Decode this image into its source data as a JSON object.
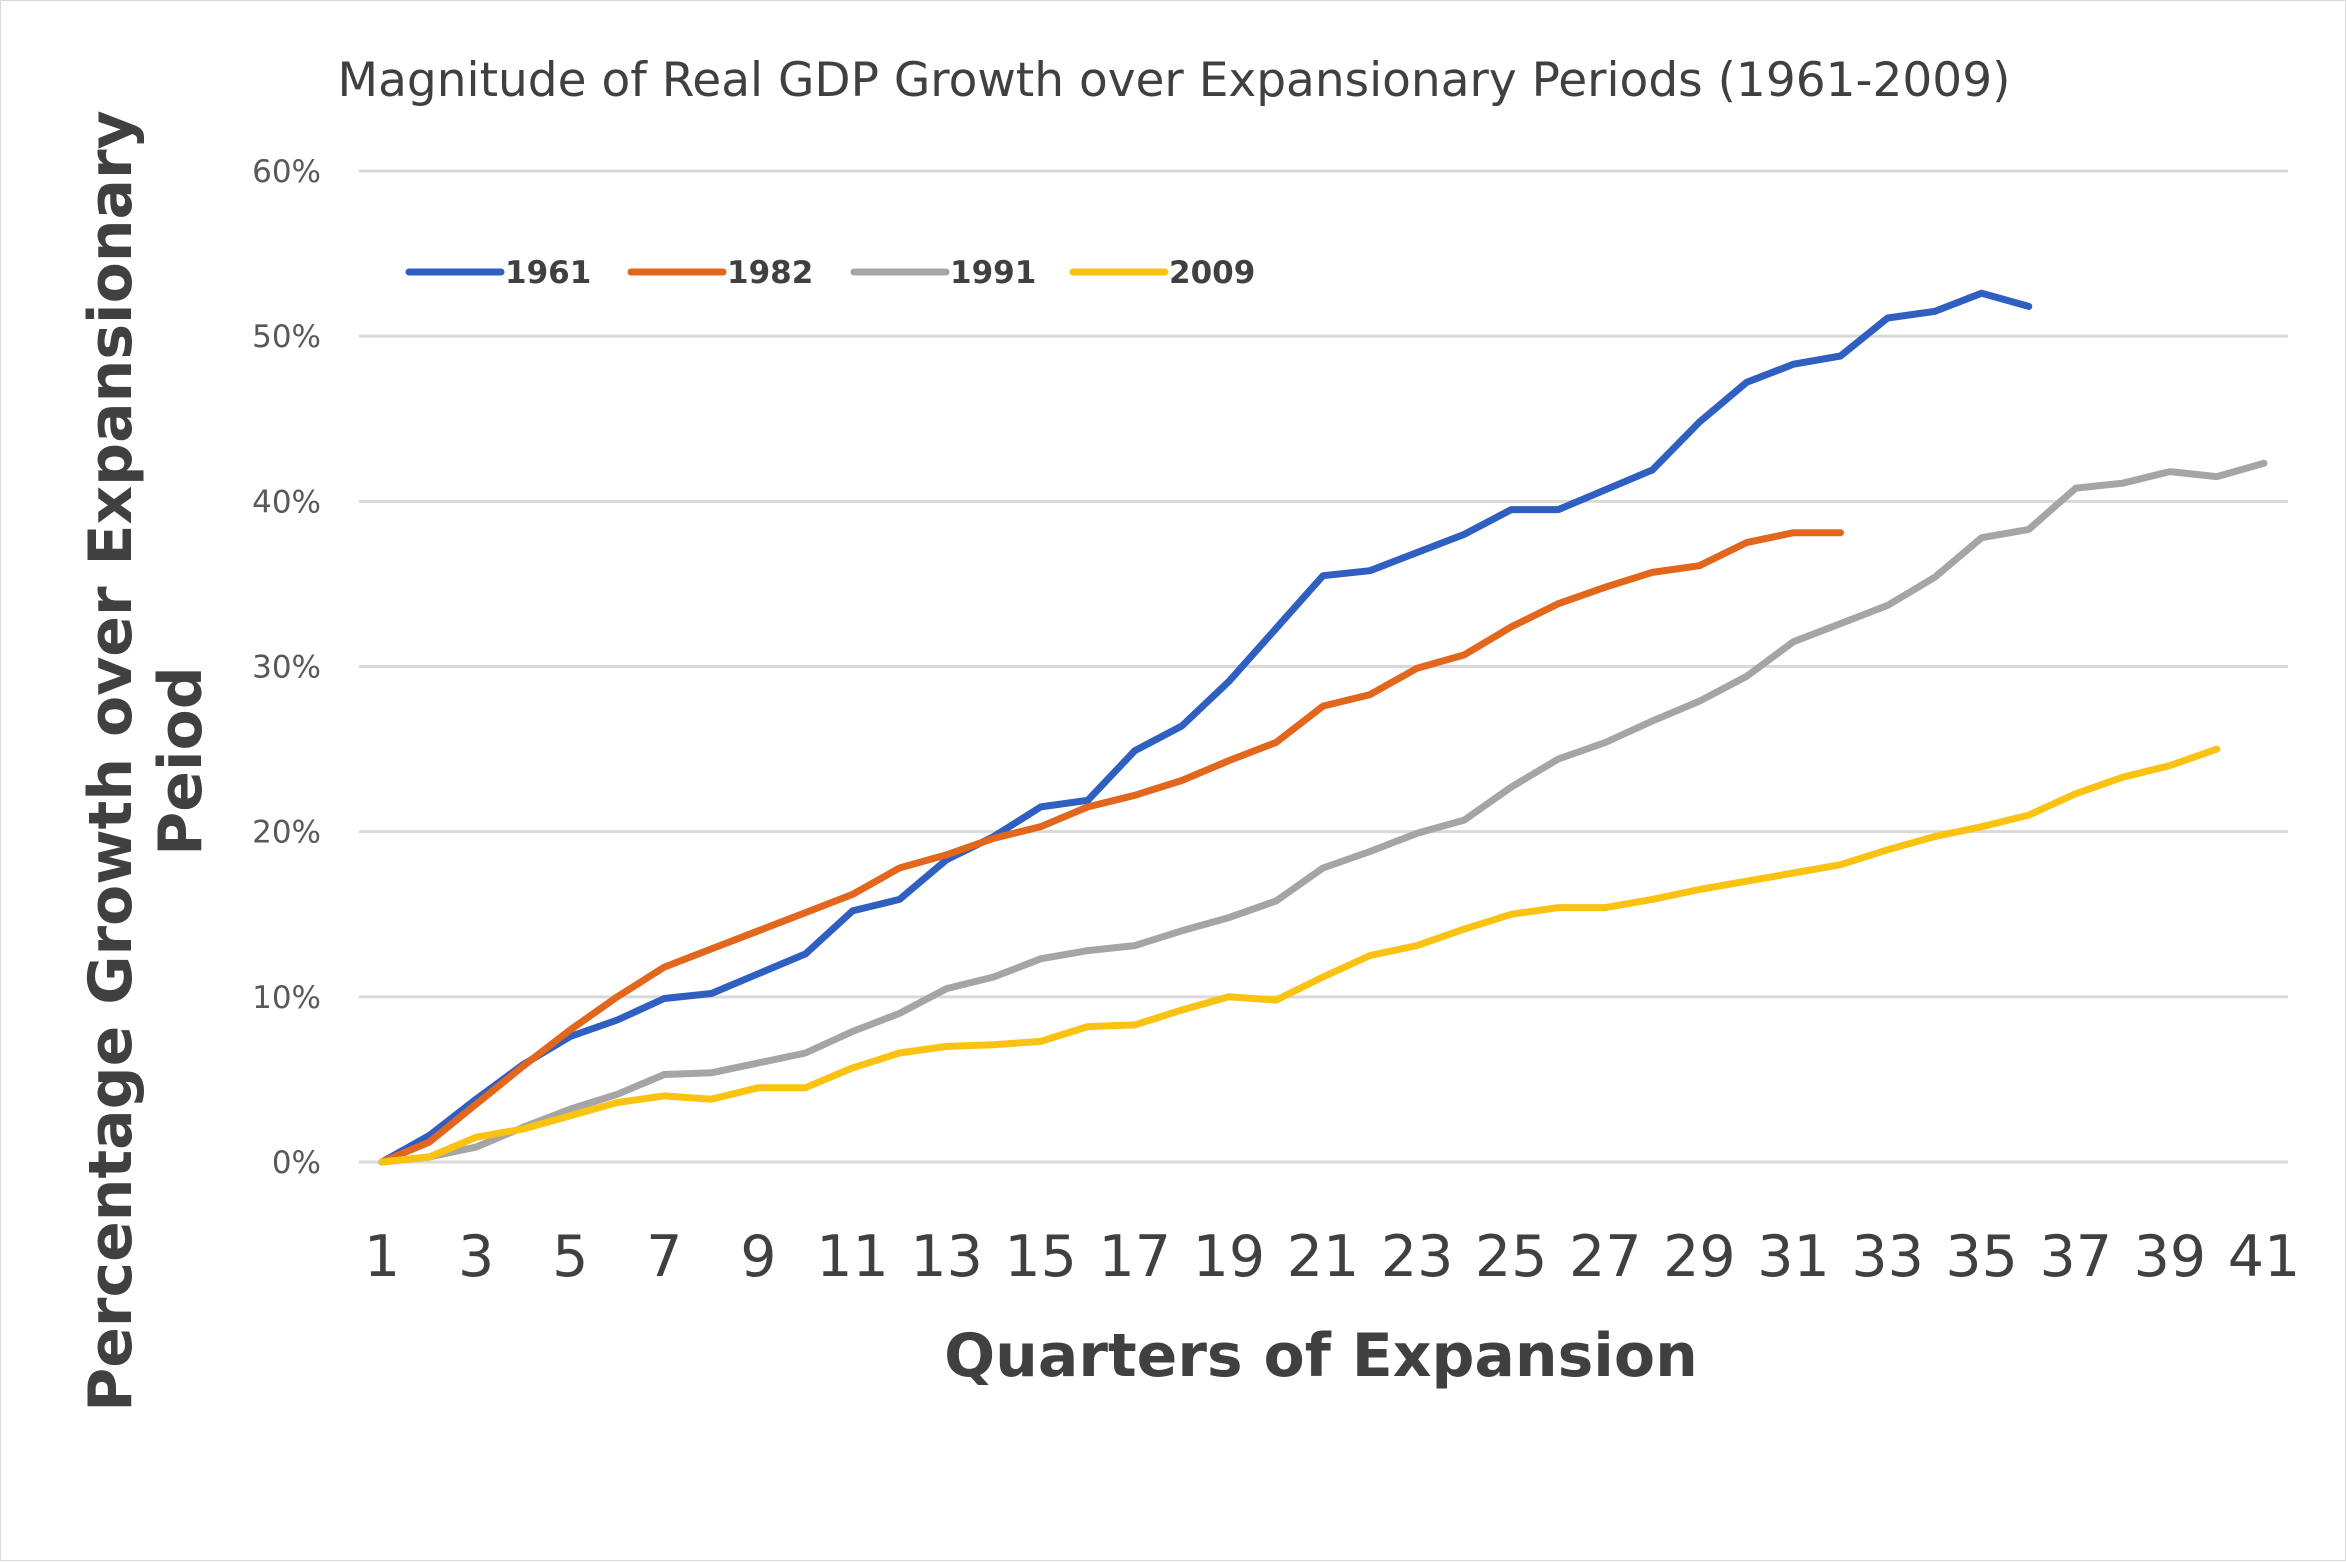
{
  "chart_data": {
    "type": "line",
    "title": "Magnitude of Real GDP Growth over Expansionary Periods (1961-2009)",
    "xlabel": "Quarters of Expansion",
    "ylabel": "Percentage Growth over Expansionary Peiod",
    "ylim": [
      0,
      60
    ],
    "xlim": [
      1,
      41
    ],
    "grid": true,
    "legend_position": "top-left",
    "y_ticks": [
      "0%",
      "10%",
      "20%",
      "30%",
      "40%",
      "50%",
      "60%"
    ],
    "x_ticks": [
      "1",
      "3",
      "5",
      "7",
      "9",
      "11",
      "13",
      "15",
      "17",
      "19",
      "21",
      "23",
      "25",
      "27",
      "29",
      "31",
      "33",
      "35",
      "37",
      "39",
      "41"
    ],
    "x": [
      1,
      2,
      3,
      4,
      5,
      6,
      7,
      8,
      9,
      10,
      11,
      12,
      13,
      14,
      15,
      16,
      17,
      18,
      19,
      20,
      21,
      22,
      23,
      24,
      25,
      26,
      27,
      28,
      29,
      30,
      31,
      32,
      33,
      34,
      35,
      36,
      37,
      38,
      39,
      40,
      41
    ],
    "series": [
      {
        "name": "1961",
        "color": "#2e5fc1",
        "values": [
          0,
          1.6,
          3.8,
          5.9,
          7.6,
          8.6,
          9.9,
          10.2,
          11.4,
          12.6,
          15.2,
          15.9,
          18.3,
          19.7,
          21.5,
          21.9,
          24.9,
          26.4,
          29.1,
          32.3,
          35.5,
          35.8,
          36.9,
          38.0,
          39.5,
          39.5,
          40.7,
          41.9,
          44.8,
          47.2,
          48.3,
          48.8,
          51.1,
          51.5,
          52.6,
          51.8,
          null,
          null,
          null,
          null,
          null
        ]
      },
      {
        "name": "1982",
        "color": "#e2661c",
        "values": [
          0,
          1.2,
          3.5,
          5.8,
          8.0,
          10.0,
          11.8,
          12.9,
          14.0,
          15.1,
          16.2,
          17.8,
          18.6,
          19.6,
          20.3,
          21.5,
          22.2,
          23.1,
          24.3,
          25.4,
          27.6,
          28.3,
          29.9,
          30.7,
          32.4,
          33.8,
          34.8,
          35.7,
          36.1,
          37.5,
          38.1,
          38.1,
          null,
          null,
          null,
          null,
          null,
          null,
          null,
          null,
          null
        ]
      },
      {
        "name": "1991",
        "color": "#a5a5a5",
        "values": [
          0,
          0.3,
          0.9,
          2.1,
          3.2,
          4.1,
          5.3,
          5.4,
          6.0,
          6.6,
          7.9,
          9.0,
          10.5,
          11.2,
          12.3,
          12.8,
          13.1,
          14.0,
          14.8,
          15.8,
          17.8,
          18.8,
          19.9,
          20.7,
          22.7,
          24.4,
          25.4,
          26.7,
          27.9,
          29.4,
          31.5,
          32.6,
          33.7,
          35.4,
          37.8,
          38.3,
          40.8,
          41.1,
          41.8,
          41.5,
          42.3
        ]
      },
      {
        "name": "2009",
        "color": "#fbc311",
        "values": [
          0,
          0.3,
          1.5,
          2.0,
          2.8,
          3.6,
          4.0,
          3.8,
          4.5,
          4.5,
          5.7,
          6.6,
          7.0,
          7.1,
          7.3,
          8.2,
          8.3,
          9.2,
          10.0,
          9.8,
          11.2,
          12.5,
          13.1,
          14.1,
          15.0,
          15.4,
          15.4,
          15.9,
          16.5,
          17.0,
          17.5,
          18.0,
          18.9,
          19.7,
          20.3,
          21.0,
          22.3,
          23.3,
          24.0,
          25.0,
          null
        ]
      }
    ]
  }
}
